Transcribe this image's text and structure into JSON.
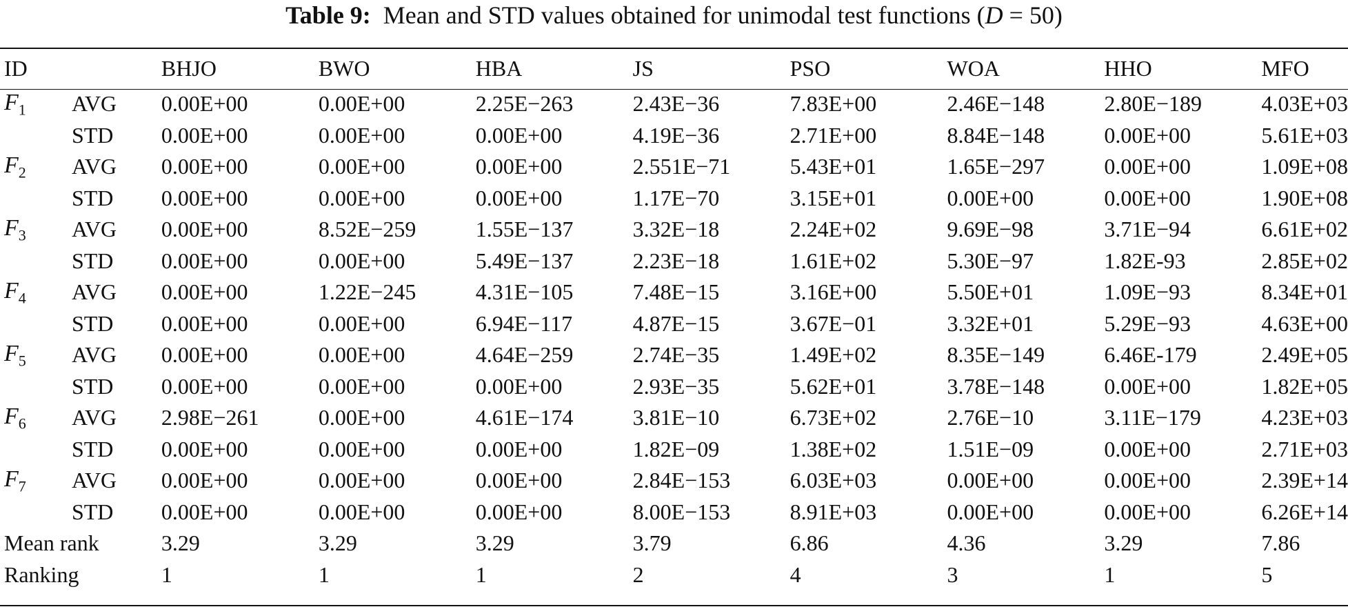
{
  "caption": {
    "label": "Table 9:",
    "text_before": "Mean and STD values obtained for unimodal test functions (",
    "var": "D",
    "text_after": " = 50)"
  },
  "header": [
    "ID",
    "",
    "BHJO",
    "BWO",
    "HBA",
    "JS",
    "PSO",
    "WOA",
    "HHO",
    "MFO"
  ],
  "functions": [
    {
      "name": "F",
      "sub": "1",
      "avg": {
        "stat": "AVG",
        "values": [
          "0.00E+00",
          "0.00E+00",
          "2.25E−263",
          "2.43E−36",
          "7.83E+00",
          "2.46E−148",
          "2.80E−189",
          "4.03E+03"
        ],
        "bold": [
          true,
          true,
          true,
          false,
          false,
          false,
          true,
          false
        ]
      },
      "std": {
        "stat": "STD",
        "values": [
          "0.00E+00",
          "0.00E+00",
          "0.00E+00",
          "4.19E−36",
          "2.71E+00",
          "8.84E−148",
          "0.00E+00",
          "5.61E+03"
        ],
        "bold": [
          true,
          true,
          true,
          false,
          false,
          false,
          true,
          false
        ]
      }
    },
    {
      "name": "F",
      "sub": "2",
      "avg": {
        "stat": "AVG",
        "values": [
          "0.00E+00",
          "0.00E+00",
          "0.00E+00",
          "2.551E−71",
          "5.43E+01",
          "1.65E−297",
          "0.00E+00",
          "1.09E+08"
        ],
        "bold": [
          true,
          true,
          true,
          false,
          false,
          true,
          true,
          false
        ]
      },
      "std": {
        "stat": "STD",
        "values": [
          "0.00E+00",
          "0.00E+00",
          "0.00E+00",
          "1.17E−70",
          "3.15E+01",
          "0.00E+00",
          "0.00E+00",
          "1.90E+08"
        ],
        "bold": [
          true,
          true,
          true,
          false,
          false,
          true,
          true,
          false
        ]
      }
    },
    {
      "name": "F",
      "sub": "3",
      "avg": {
        "stat": "AVG",
        "values": [
          "0.00E+00",
          "8.52E−259",
          "1.55E−137",
          "3.32E−18",
          "2.24E+02",
          "9.69E−98",
          "3.71E−94",
          "6.61E+02"
        ],
        "bold": [
          true,
          true,
          false,
          false,
          false,
          false,
          false,
          false
        ]
      },
      "std": {
        "stat": "STD",
        "values": [
          "0.00E+00",
          "0.00E+00",
          "5.49E−137",
          "2.23E−18",
          "1.61E+02",
          "5.30E−97",
          "1.82E-93",
          "2.85E+02"
        ],
        "bold": [
          true,
          true,
          false,
          false,
          false,
          false,
          false,
          false
        ]
      }
    },
    {
      "name": "F",
      "sub": "4",
      "avg": {
        "stat": "AVG",
        "values": [
          "0.00E+00",
          "1.22E−245",
          "4.31E−105",
          "7.48E−15",
          "3.16E+00",
          "5.50E+01",
          "1.09E−93",
          "8.34E+01"
        ],
        "bold": [
          true,
          true,
          false,
          false,
          false,
          false,
          false,
          false
        ]
      },
      "std": {
        "stat": "STD",
        "values": [
          "0.00E+00",
          "0.00E+00",
          "6.94E−117",
          "4.87E−15",
          "3.67E−01",
          "3.32E+01",
          "5.29E−93",
          "4.63E+00"
        ],
        "bold": [
          true,
          true,
          false,
          false,
          false,
          false,
          false,
          false
        ]
      }
    },
    {
      "name": "F",
      "sub": "5",
      "avg": {
        "stat": "AVG",
        "values": [
          "0.00E+00",
          "0.00E+00",
          "4.64E−259",
          "2.74E−35",
          "1.49E+02",
          "8.35E−149",
          "6.46E-179",
          "2.49E+05"
        ],
        "bold": [
          true,
          true,
          true,
          false,
          false,
          false,
          true,
          false
        ]
      },
      "std": {
        "stat": "STD",
        "values": [
          "0.00E+00",
          "0.00E+00",
          "0.00E+00",
          "2.93E−35",
          "5.62E+01",
          "3.78E−148",
          "0.00E+00",
          "1.82E+05"
        ],
        "bold": [
          true,
          true,
          true,
          false,
          false,
          false,
          true,
          false
        ]
      }
    },
    {
      "name": "F",
      "sub": "6",
      "avg": {
        "stat": "AVG",
        "values": [
          "2.98E−261",
          "0.00E+00",
          "4.61E−174",
          "3.81E−10",
          "6.73E+02",
          "2.76E−10",
          "3.11E−179",
          "4.23E+03"
        ],
        "bold": [
          true,
          true,
          true,
          false,
          false,
          false,
          true,
          false
        ]
      },
      "std": {
        "stat": "STD",
        "values": [
          "0.00E+00",
          "0.00E+00",
          "0.00E+00",
          "1.82E−09",
          "1.38E+02",
          "1.51E−09",
          "0.00E+00",
          "2.71E+03"
        ],
        "bold": [
          true,
          true,
          true,
          false,
          false,
          false,
          true,
          false
        ]
      }
    },
    {
      "name": "F",
      "sub": "7",
      "avg": {
        "stat": "AVG",
        "values": [
          "0.00E+00",
          "0.00E+00",
          "0.00E+00",
          "2.84E−153",
          "6.03E+03",
          "0.00E+00",
          "0.00E+00",
          "2.39E+14"
        ],
        "bold": [
          true,
          true,
          true,
          false,
          false,
          true,
          true,
          false
        ]
      },
      "std": {
        "stat": "STD",
        "values": [
          "0.00E+00",
          "0.00E+00",
          "0.00E+00",
          "8.00E−153",
          "8.91E+03",
          "0.00E+00",
          "0.00E+00",
          "6.26E+14"
        ],
        "bold": [
          true,
          true,
          true,
          false,
          false,
          true,
          true,
          false
        ]
      }
    }
  ],
  "summary": [
    {
      "label": "Mean rank",
      "values": [
        "3.29",
        "3.29",
        "3.29",
        "3.79",
        "6.86",
        "4.36",
        "3.29",
        "7.86"
      ]
    },
    {
      "label": "Ranking",
      "values": [
        "1",
        "1",
        "1",
        "2",
        "4",
        "3",
        "1",
        "5"
      ]
    }
  ]
}
